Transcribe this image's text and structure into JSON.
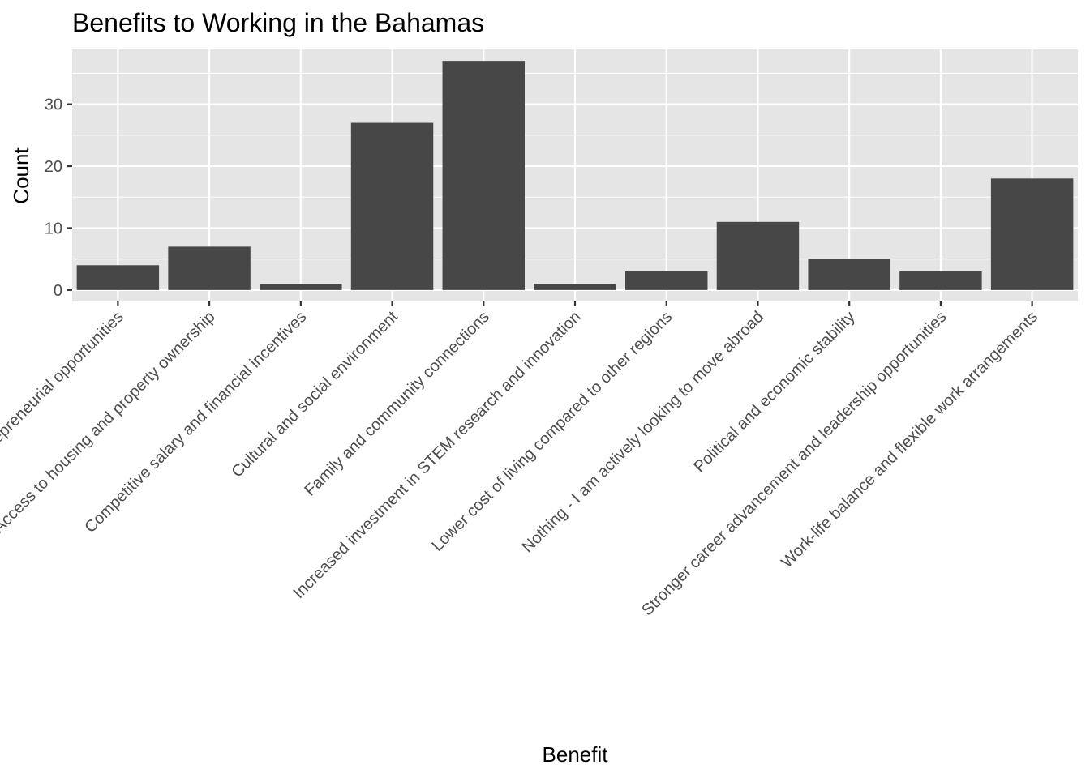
{
  "chart_data": {
    "type": "bar",
    "title": "Benefits to Working in the Bahamas",
    "xlabel": "Benefit",
    "ylabel": "Count",
    "categories": [
      "Access to entrepreneurial opportunities",
      "Access to housing and property ownership",
      "Competitive salary and financial incentives",
      "Cultural and social environment",
      "Family and community connections",
      "Increased investment in STEM research and innovation",
      "Lower cost of living compared to other regions",
      "Nothing - I am actively looking to move abroad",
      "Political and economic stability",
      "Stronger career advancement and leadership opportunities",
      "Work-life balance and flexible work arrangements"
    ],
    "values": [
      4,
      7,
      1,
      27,
      37,
      1,
      3,
      11,
      5,
      3,
      18
    ],
    "yticks": [
      0,
      10,
      20,
      30
    ],
    "ylim": [
      -1.85,
      38.85
    ],
    "grid": true,
    "legend": "none",
    "colors": {
      "bar": "#474747",
      "panel": "#e5e5e5",
      "grid": "#ffffff",
      "tick_text": "#4d4d4d",
      "tick_mark": "#333333"
    }
  }
}
